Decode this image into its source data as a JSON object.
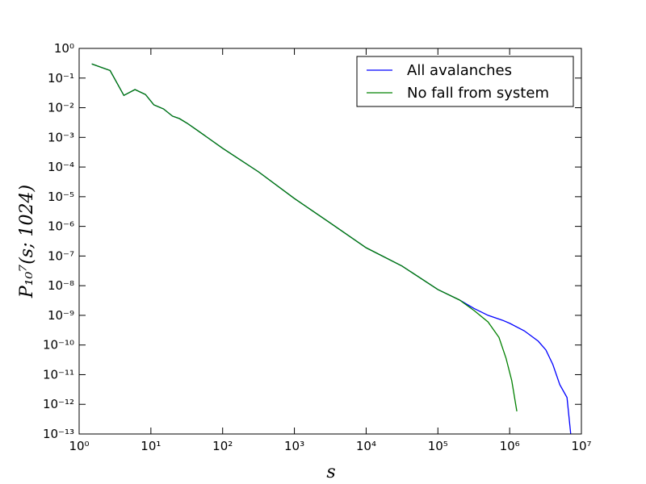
{
  "chart_data": {
    "type": "line",
    "xlabel": "s",
    "ylabel": "P₁₀⁷(s; 1024)",
    "log_x": true,
    "log_y": true,
    "legend": "upper right",
    "xlim": [
      1,
      10000000
    ],
    "ylim": [
      1e-13,
      1
    ],
    "xticks": [
      {
        "value": 1,
        "label": "10⁰"
      },
      {
        "value": 10,
        "label": "10¹"
      },
      {
        "value": 100,
        "label": "10²"
      },
      {
        "value": 1000,
        "label": "10³"
      },
      {
        "value": 10000,
        "label": "10⁴"
      },
      {
        "value": 100000,
        "label": "10⁵"
      },
      {
        "value": 1000000,
        "label": "10⁶"
      },
      {
        "value": 10000000,
        "label": "10⁷"
      }
    ],
    "yticks": [
      {
        "value": 1e-13,
        "label": "10⁻¹³"
      },
      {
        "value": 1e-12,
        "label": "10⁻¹²"
      },
      {
        "value": 1e-11,
        "label": "10⁻¹¹"
      },
      {
        "value": 1e-10,
        "label": "10⁻¹⁰"
      },
      {
        "value": 1e-09,
        "label": "10⁻⁹"
      },
      {
        "value": 1e-08,
        "label": "10⁻⁸"
      },
      {
        "value": 1e-07,
        "label": "10⁻⁷"
      },
      {
        "value": 1e-06,
        "label": "10⁻⁶"
      },
      {
        "value": 1e-05,
        "label": "10⁻⁵"
      },
      {
        "value": 0.0001,
        "label": "10⁻⁴"
      },
      {
        "value": 0.001,
        "label": "10⁻³"
      },
      {
        "value": 0.01,
        "label": "10⁻²"
      },
      {
        "value": 0.1,
        "label": "10⁻¹"
      },
      {
        "value": 1,
        "label": "10⁰"
      }
    ],
    "series": [
      {
        "name": "All avalanches",
        "color": "#0000ff",
        "x": [
          1.5,
          2.7,
          4.2,
          6,
          8.4,
          11,
          15,
          20,
          25,
          32,
          42,
          65,
          100,
          316,
          1000,
          3162,
          10000,
          31623,
          100000,
          200000,
          320000,
          500000,
          800000,
          1000000,
          1600000,
          2500000,
          3200000,
          4000000,
          5000000,
          6300000,
          7100000
        ],
        "values": [
          0.3,
          0.18,
          0.026,
          0.041,
          0.028,
          0.0125,
          0.0091,
          0.0052,
          0.0043,
          0.003,
          0.0019,
          0.0009,
          0.00043,
          6.9e-05,
          8.7e-06,
          1.3e-06,
          1.9e-07,
          4.6e-08,
          7.4e-09,
          3.3e-09,
          1.7e-09,
          1e-09,
          6.8e-10,
          5.4e-10,
          3e-10,
          1.35e-10,
          6.8e-11,
          2.2e-11,
          4.6e-12,
          1.7e-12,
          1e-13
        ]
      },
      {
        "name": "No fall from system",
        "color": "#008000",
        "x": [
          1.5,
          2.7,
          4.2,
          6,
          8.4,
          11,
          15,
          20,
          25,
          32,
          42,
          65,
          100,
          316,
          1000,
          3162,
          10000,
          31623,
          100000,
          200000,
          320000,
          500000,
          710000,
          890000,
          1070000,
          1260000
        ],
        "values": [
          0.3,
          0.18,
          0.026,
          0.041,
          0.028,
          0.0125,
          0.0091,
          0.0052,
          0.0043,
          0.003,
          0.0019,
          0.0009,
          0.00043,
          6.9e-05,
          8.7e-06,
          1.3e-06,
          1.9e-07,
          4.6e-08,
          7.4e-09,
          3.3e-09,
          1.45e-09,
          6e-10,
          1.8e-10,
          3.6e-11,
          6.3e-12,
          5.8e-13
        ]
      }
    ]
  }
}
